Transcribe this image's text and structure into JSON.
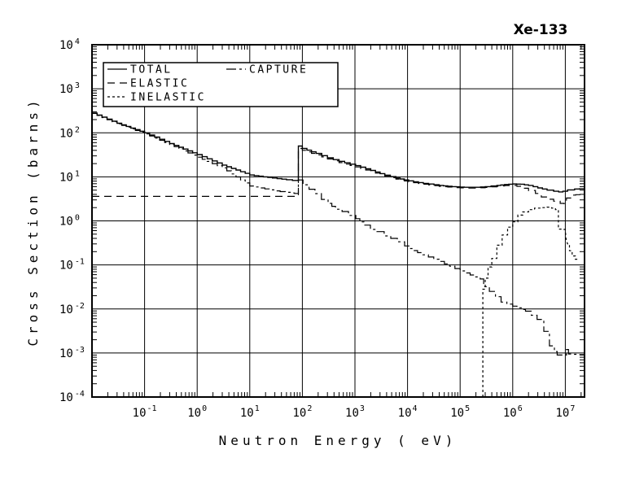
{
  "title": "Xe-133",
  "colors": {
    "foreground": "#000000",
    "background": "#ffffff"
  },
  "legend": {
    "entries": [
      {
        "label": "TOTAL",
        "style": "solid"
      },
      {
        "label": "ELASTIC",
        "style": "long-dash"
      },
      {
        "label": "INELASTIC",
        "style": "short-dash"
      },
      {
        "label": "CAPTURE",
        "style": "dash-dot"
      }
    ]
  },
  "axes": {
    "x": {
      "label": "Neutron Energy ( eV)",
      "scale": "log",
      "tick_base": "10",
      "tick_exponents": [
        "-1",
        "0",
        "1",
        "2",
        "3",
        "4",
        "5",
        "6",
        "7"
      ]
    },
    "y": {
      "label": "Cross Section (barns)",
      "scale": "log",
      "tick_base": "10",
      "tick_exponents": [
        "4",
        "3",
        "2",
        "1",
        "0",
        "-1",
        "-2",
        "-3",
        "-4"
      ]
    }
  },
  "chart_data": {
    "type": "line",
    "title": "Xe-133",
    "xlabel": "Neutron Energy ( eV)",
    "ylabel": "Cross Section (barns)",
    "x_scale": "log",
    "y_scale": "log",
    "xlim": [
      0.01,
      23200000
    ],
    "ylim": [
      0.0001,
      10000
    ],
    "grid": true,
    "legend_position": "top-left",
    "units": {
      "x": "eV",
      "y": "barns"
    },
    "series": [
      {
        "name": "TOTAL",
        "style": "solid",
        "points": [
          [
            0.01,
            280
          ],
          [
            0.03,
            165
          ],
          [
            0.1,
            100
          ],
          [
            0.3,
            57
          ],
          [
            1,
            32
          ],
          [
            3,
            18.5
          ],
          [
            10,
            11
          ],
          [
            22,
            9.7
          ],
          [
            50,
            8.6
          ],
          [
            84,
            8.0
          ],
          [
            84,
            50
          ],
          [
            100,
            44
          ],
          [
            182,
            34
          ],
          [
            300,
            27
          ],
          [
            500,
            22.5
          ],
          [
            1030,
            18
          ],
          [
            2000,
            14
          ],
          [
            3700,
            10.9
          ],
          [
            6000,
            9.4
          ],
          [
            10500,
            8.1
          ],
          [
            20000,
            7.1
          ],
          [
            40000,
            6.4
          ],
          [
            70000,
            6.0
          ],
          [
            120000,
            5.8
          ],
          [
            200000,
            5.8
          ],
          [
            300000,
            6.0
          ],
          [
            500000,
            6.4
          ],
          [
            700000,
            6.7
          ],
          [
            1000000,
            6.9
          ],
          [
            1400000,
            6.8
          ],
          [
            2000000,
            6.4
          ],
          [
            3000000,
            5.6
          ],
          [
            4500000,
            5.0
          ],
          [
            6000000,
            4.7
          ],
          [
            7500000,
            4.55
          ],
          [
            9000000,
            4.7
          ],
          [
            11000000,
            5.05
          ],
          [
            15000000,
            5.3
          ],
          [
            23000000,
            5.4
          ]
        ]
      },
      {
        "name": "ELASTIC",
        "style": "long-dash",
        "points": [
          [
            0.01,
            3.6
          ],
          [
            84,
            3.6
          ],
          [
            84,
            44
          ],
          [
            100,
            40
          ],
          [
            182,
            31.5
          ],
          [
            300,
            25.5
          ],
          [
            500,
            21
          ],
          [
            1030,
            16.8
          ],
          [
            2000,
            13.2
          ],
          [
            3700,
            10.3
          ],
          [
            6000,
            8.9
          ],
          [
            10500,
            7.7
          ],
          [
            20000,
            6.8
          ],
          [
            40000,
            6.1
          ],
          [
            70000,
            5.75
          ],
          [
            120000,
            5.55
          ],
          [
            200000,
            5.55
          ],
          [
            300000,
            5.75
          ],
          [
            500000,
            6.1
          ],
          [
            700000,
            6.35
          ],
          [
            1000000,
            6.4
          ],
          [
            1200000,
            6.1
          ],
          [
            1500000,
            5.5
          ],
          [
            2000000,
            4.9
          ],
          [
            2700000,
            4.2
          ],
          [
            3500000,
            3.5
          ],
          [
            4500000,
            3.1
          ],
          [
            6000000,
            2.8
          ],
          [
            8000000,
            2.5
          ],
          [
            9500000,
            2.45
          ],
          [
            10500000,
            3.3
          ],
          [
            13000000,
            3.85
          ],
          [
            23000000,
            4.1
          ]
        ]
      },
      {
        "name": "INELASTIC",
        "style": "short-dash",
        "points": [
          [
            270000,
            0.0001
          ],
          [
            270000,
            0.028
          ],
          [
            300000,
            0.05
          ],
          [
            340000,
            0.09
          ],
          [
            400000,
            0.14
          ],
          [
            500000,
            0.28
          ],
          [
            630000,
            0.48
          ],
          [
            800000,
            0.72
          ],
          [
            1000000,
            0.95
          ],
          [
            1250000,
            1.35
          ],
          [
            1550000,
            1.6
          ],
          [
            2000000,
            1.8
          ],
          [
            2600000,
            1.95
          ],
          [
            3500000,
            2.0
          ],
          [
            4500000,
            2.05
          ],
          [
            5500000,
            1.95
          ],
          [
            6500000,
            1.8
          ],
          [
            7400000,
            1.75
          ],
          [
            7400000,
            0.65
          ],
          [
            8500000,
            0.64
          ],
          [
            10000000,
            0.63
          ],
          [
            10300000,
            0.4
          ],
          [
            11000000,
            0.3
          ],
          [
            12000000,
            0.21
          ],
          [
            13500000,
            0.16
          ],
          [
            15500000,
            0.135
          ],
          [
            17000000,
            0.13
          ]
        ]
      },
      {
        "name": "CAPTURE",
        "style": "dash-dot",
        "points": [
          [
            0.01,
            276
          ],
          [
            0.03,
            160
          ],
          [
            0.1,
            95
          ],
          [
            0.3,
            54
          ],
          [
            1,
            28
          ],
          [
            3,
            16
          ],
          [
            10,
            6.2
          ],
          [
            30,
            4.8
          ],
          [
            60,
            4.3
          ],
          [
            84,
            4.1
          ],
          [
            84,
            8.5
          ],
          [
            103,
            6.6
          ],
          [
            174,
            4.15
          ],
          [
            230,
            3.07
          ],
          [
            309,
            2.5
          ],
          [
            427,
            1.84
          ],
          [
            570,
            1.63
          ],
          [
            755,
            1.33
          ],
          [
            1040,
            1.12
          ],
          [
            1480,
            0.8
          ],
          [
            1970,
            0.64
          ],
          [
            2620,
            0.57
          ],
          [
            3600,
            0.455
          ],
          [
            4800,
            0.4
          ],
          [
            6400,
            0.335
          ],
          [
            8800,
            0.27
          ],
          [
            11000,
            0.235
          ],
          [
            15500,
            0.19
          ],
          [
            40000,
            0.12
          ],
          [
            100000,
            0.073
          ],
          [
            240000,
            0.048
          ],
          [
            280000,
            0.032
          ],
          [
            360000,
            0.025
          ],
          [
            470000,
            0.019
          ],
          [
            600000,
            0.0143
          ],
          [
            1000000,
            0.0116
          ],
          [
            1750000,
            0.0089
          ],
          [
            2900000,
            0.0058
          ],
          [
            3900000,
            0.0031
          ],
          [
            5000000,
            0.00145
          ],
          [
            6200000,
            0.00108
          ],
          [
            7000000,
            0.0009
          ],
          [
            9500000,
            0.0009
          ],
          [
            10500000,
            0.0012
          ],
          [
            11500000,
            0.00095
          ],
          [
            23000000,
            0.0009
          ]
        ]
      }
    ]
  }
}
